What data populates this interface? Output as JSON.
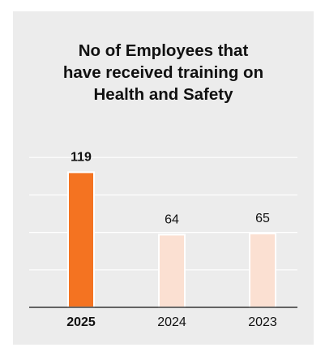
{
  "chart_data": {
    "type": "bar",
    "title": [
      "No of Employees that",
      "have received training on",
      "Health and Safety"
    ],
    "categories": [
      "2025",
      "2024",
      "2023"
    ],
    "values": [
      119,
      64,
      65
    ],
    "highlight_index": 0,
    "ylim": [
      0,
      160
    ],
    "grid": true,
    "xlabel": "",
    "ylabel": "",
    "colors": {
      "highlight": "#f47321",
      "normal": "#fbe0d2",
      "grid": "#ffffff",
      "axis": "#111111",
      "text": "#111111"
    }
  }
}
